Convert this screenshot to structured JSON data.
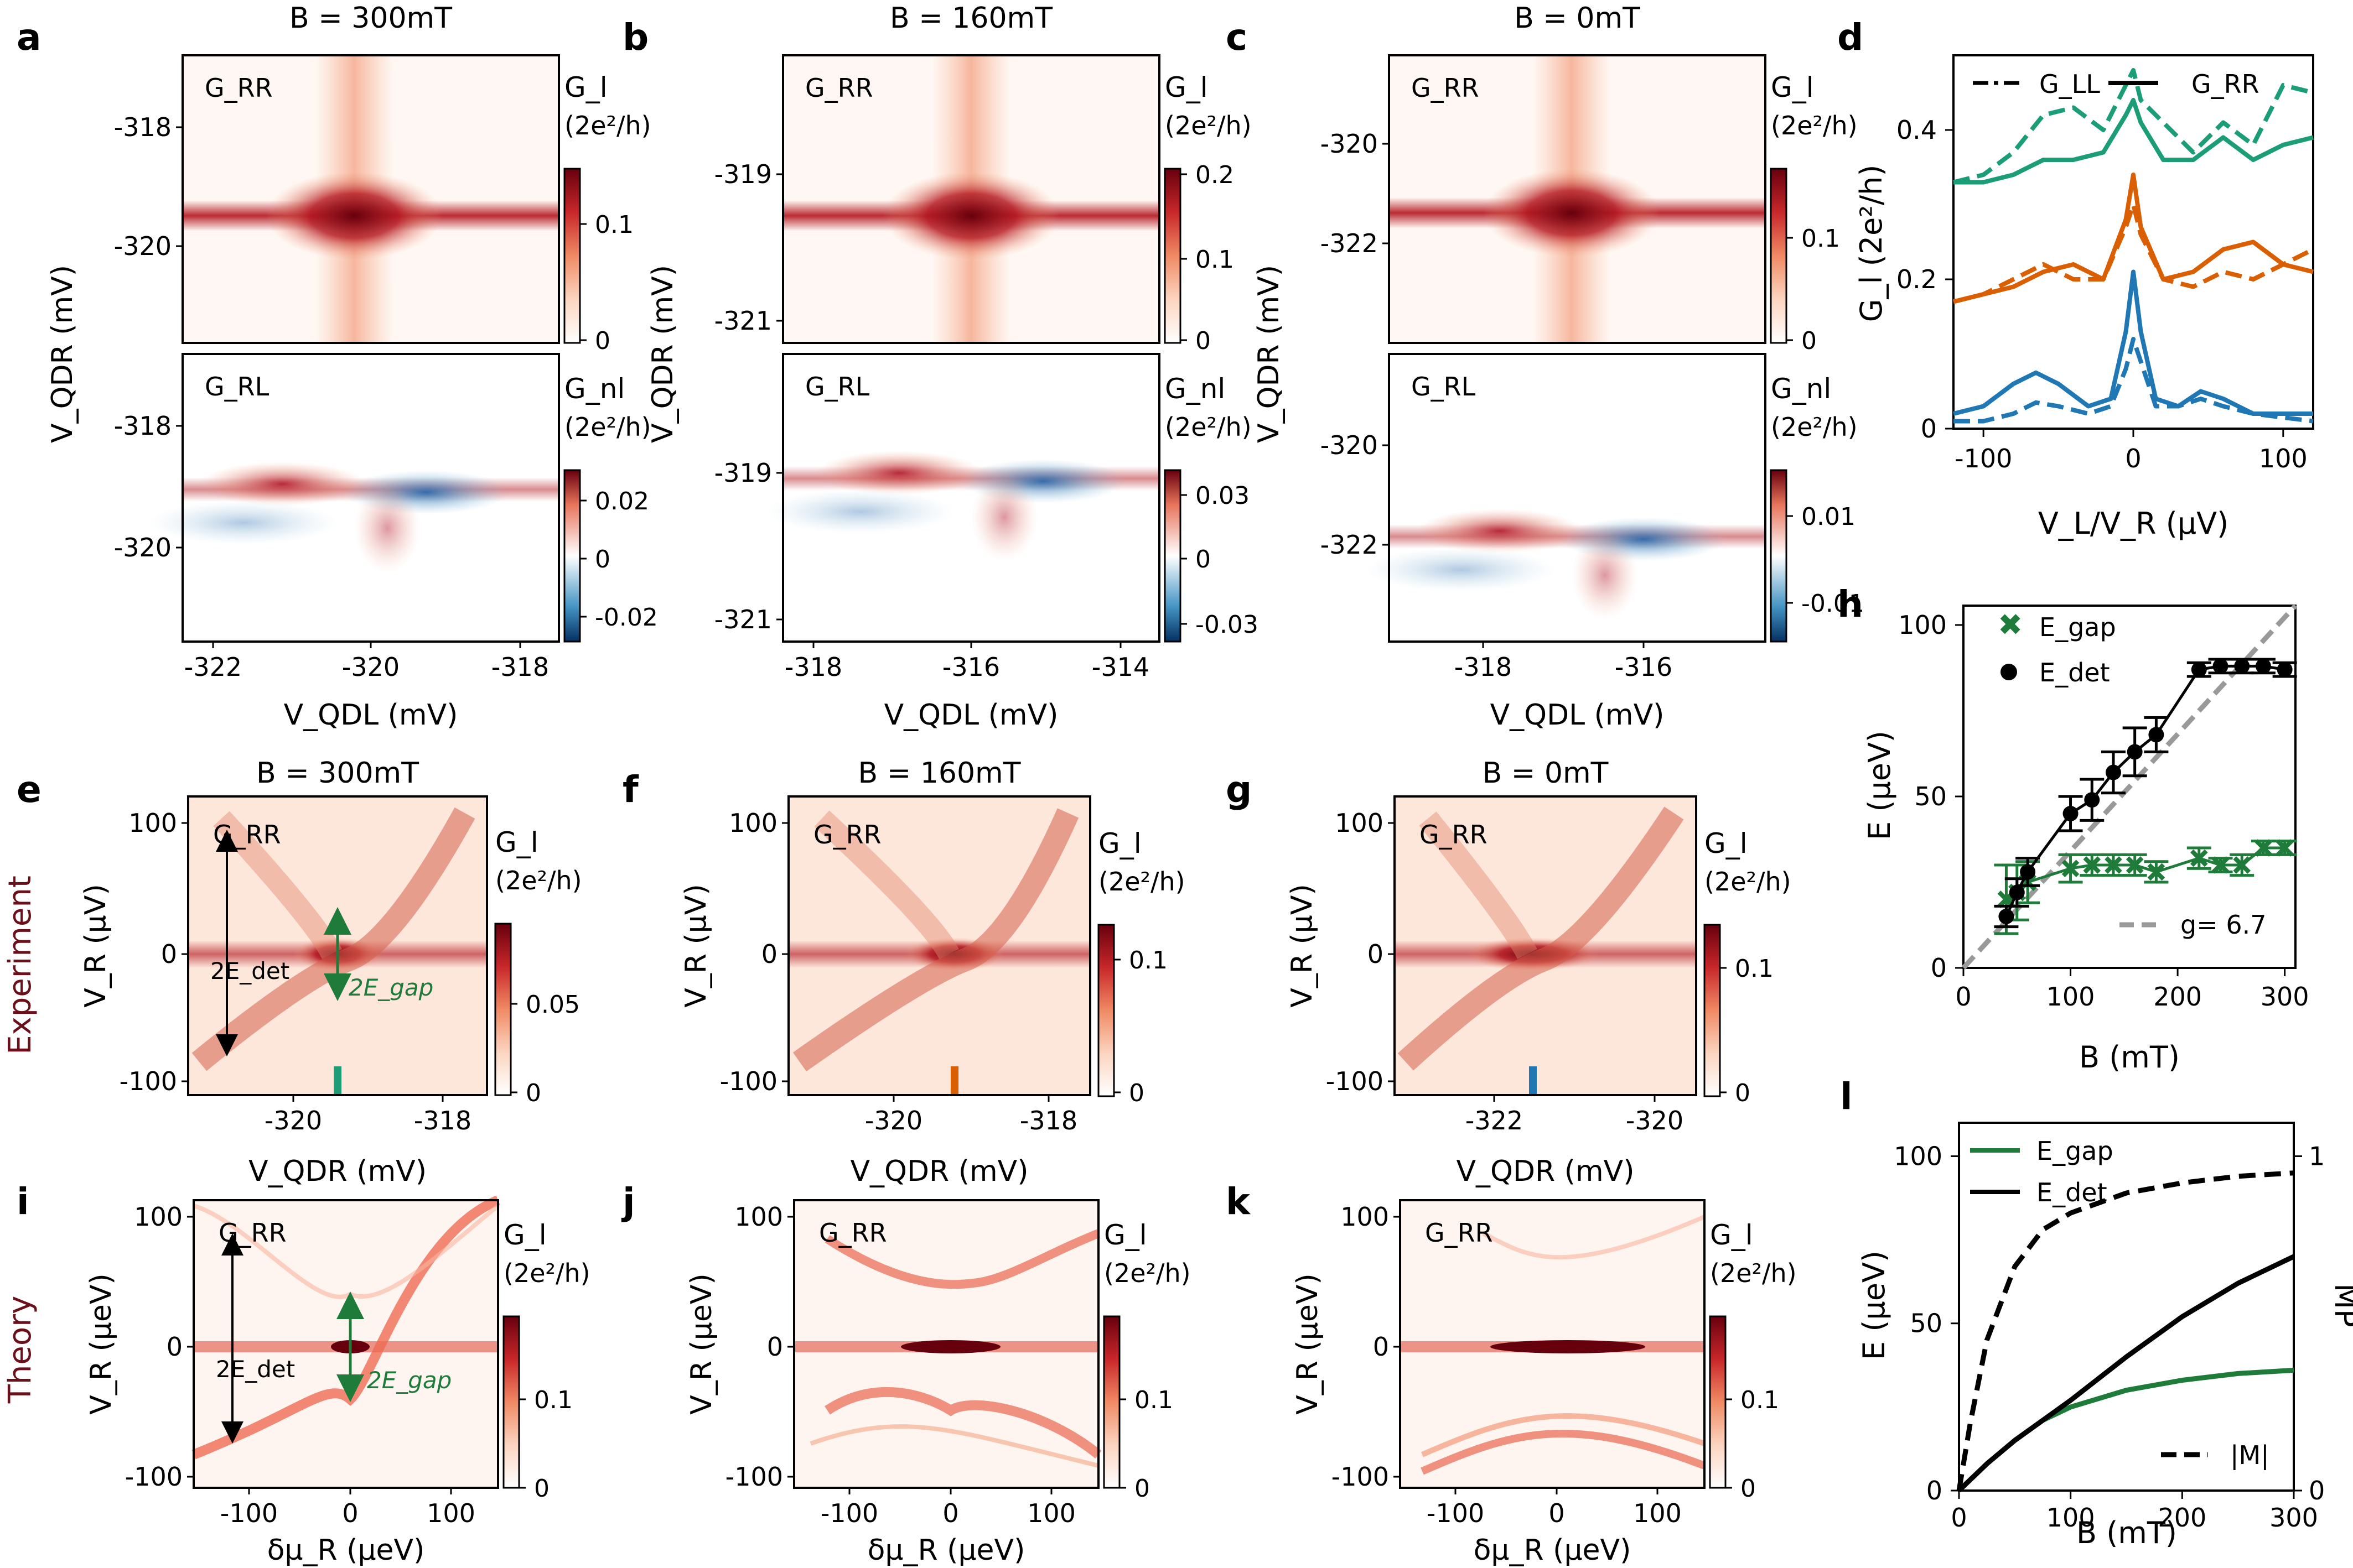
{
  "colors": {
    "cmap_seq": [
      "#ffffff",
      "#fce0d0",
      "#f5a582",
      "#de4e3a",
      "#a50f15",
      "#67000d"
    ],
    "cmap_div_neg": "#2166ac",
    "cmap_div_pos": "#b2182b",
    "qd_green": "#1b9e77",
    "qd_orange": "#d95f02",
    "qd_blue": "#1f77b4",
    "gap_green": "#1e7b3a",
    "row_label": "#6b0f1a",
    "dash_grey": "#999999"
  },
  "row_labels": {
    "experiment": "Experiment",
    "theory": "Theory"
  },
  "top_maps": [
    {
      "letter": "a",
      "title": "B = 300mT",
      "top_label": "G_RR",
      "bottom_label": "G_RL",
      "xlabel": "V_QDL (mV)",
      "ylabel": "V_QDR (mV)",
      "x_ticks": [
        "-322",
        "-320",
        "-318"
      ],
      "y_ticks_top": [
        "-318",
        "-320"
      ],
      "y_ticks_bottom": [
        "-318",
        "-320"
      ],
      "cbar_top": {
        "label1": "G_l",
        "label2": "(2e²/h)",
        "ticks": [
          "0.1",
          "0"
        ]
      },
      "cbar_bottom": {
        "label1": "G_nl",
        "label2": "(2e²/h)",
        "ticks": [
          "0.02",
          "0",
          "-0.02"
        ]
      }
    },
    {
      "letter": "b",
      "title": "B = 160mT",
      "top_label": "G_RR",
      "bottom_label": "G_RL",
      "xlabel": "V_QDL (mV)",
      "ylabel": "V_QDR (mV)",
      "x_ticks": [
        "-318",
        "-316",
        "-314"
      ],
      "y_ticks_top": [
        "-319",
        "-321"
      ],
      "y_ticks_bottom": [
        "-319",
        "-321"
      ],
      "cbar_top": {
        "label1": "G_l",
        "label2": "(2e²/h)",
        "ticks": [
          "0.2",
          "0.1",
          "0"
        ]
      },
      "cbar_bottom": {
        "label1": "G_nl",
        "label2": "(2e²/h)",
        "ticks": [
          "0.03",
          "0",
          "-0.03"
        ]
      }
    },
    {
      "letter": "c",
      "title": "B = 0mT",
      "top_label": "G_RR",
      "bottom_label": "G_RL",
      "xlabel": "V_QDL (mV)",
      "ylabel": "V_QDR (mV)",
      "x_ticks": [
        "-318",
        "-316"
      ],
      "y_ticks_top": [
        "-320",
        "-322"
      ],
      "y_ticks_bottom": [
        "-320",
        "-322"
      ],
      "cbar_top": {
        "label1": "G_l",
        "label2": "(2e²/h)",
        "ticks": [
          "0.1",
          "0"
        ]
      },
      "cbar_bottom": {
        "label1": "G_nl",
        "label2": "(2e²/h)",
        "ticks": [
          "0.01",
          "-0.01"
        ]
      }
    }
  ],
  "exp_maps": [
    {
      "letter": "e",
      "title": "B = 300mT",
      "label": "G_RR",
      "xlabel": "V_QDR (mV)",
      "ylabel": "V_R (µV)",
      "x_ticks": [
        "-320",
        "-318"
      ],
      "y_ticks": [
        "100",
        "0",
        "-100"
      ],
      "cbar": {
        "label1": "G_l",
        "label2": "(2e²/h)",
        "ticks": [
          "0.05",
          "0"
        ]
      },
      "marker_color": "#1b9e77",
      "annot_det": "2E_det",
      "annot_gap": "2E_gap"
    },
    {
      "letter": "f",
      "title": "B = 160mT",
      "label": "G_RR",
      "xlabel": "V_QDR (mV)",
      "ylabel": "V_R (µV)",
      "x_ticks": [
        "-320",
        "-318"
      ],
      "y_ticks": [
        "100",
        "0",
        "-100"
      ],
      "cbar": {
        "label1": "G_l",
        "label2": "(2e²/h)",
        "ticks": [
          "0.1",
          "0"
        ]
      },
      "marker_color": "#d95f02"
    },
    {
      "letter": "g",
      "title": "B = 0mT",
      "label": "G_RR",
      "xlabel": "V_QDR (mV)",
      "ylabel": "V_R (µV)",
      "x_ticks": [
        "-322",
        "-320"
      ],
      "y_ticks": [
        "100",
        "0",
        "-100"
      ],
      "cbar": {
        "label1": "G_l",
        "label2": "(2e²/h)",
        "ticks": [
          "0.1",
          "0"
        ]
      },
      "marker_color": "#1f77b4"
    }
  ],
  "theory_maps": [
    {
      "letter": "i",
      "label": "G_RR",
      "xlabel": "δμ_R (µeV)",
      "ylabel": "V_R (µeV)",
      "x_ticks": [
        "-100",
        "0",
        "100"
      ],
      "y_ticks": [
        "100",
        "0",
        "-100"
      ],
      "cbar": {
        "label1": "G_l",
        "label2": "(2e²/h)",
        "ticks": [
          "0.1",
          "0"
        ]
      },
      "annot_det": "2E_det",
      "annot_gap": "2E_gap"
    },
    {
      "letter": "j",
      "label": "G_RR",
      "xlabel": "δμ_R (µeV)",
      "ylabel": "V_R (µeV)",
      "x_ticks": [
        "-100",
        "0",
        "100"
      ],
      "y_ticks": [
        "100",
        "0",
        "-100"
      ],
      "cbar": {
        "label1": "G_l",
        "label2": "(2e²/h)",
        "ticks": [
          "0.1",
          "0"
        ]
      }
    },
    {
      "letter": "k",
      "label": "G_RR",
      "xlabel": "δμ_R (µeV)",
      "ylabel": "V_R (µeV)",
      "x_ticks": [
        "-100",
        "0",
        "100"
      ],
      "y_ticks": [
        "100",
        "0",
        "-100"
      ],
      "cbar": {
        "label1": "G_l",
        "label2": "(2e²/h)",
        "ticks": [
          "0.1",
          "0"
        ]
      }
    }
  ],
  "chart_data": [
    {
      "panel": "d",
      "type": "line",
      "xlabel": "V_L/V_R (µV)",
      "ylabel": "G_l (2e²/h)",
      "xlim": [
        -120,
        120
      ],
      "ylim": [
        0,
        0.5
      ],
      "x_ticks": [
        "-100",
        "0",
        "100"
      ],
      "y_ticks": [
        "0",
        "0.2",
        "0.4"
      ],
      "legend": [
        "G_LL",
        "G_RR"
      ],
      "legend_position": "top",
      "series": [
        {
          "name": "G_RR 0mT",
          "color": "#1f77b4",
          "style": "solid",
          "x": [
            -120,
            -100,
            -80,
            -65,
            -50,
            -30,
            -15,
            -5,
            0,
            5,
            15,
            30,
            45,
            60,
            80,
            100,
            120
          ],
          "y": [
            0.02,
            0.03,
            0.06,
            0.075,
            0.06,
            0.03,
            0.04,
            0.13,
            0.21,
            0.13,
            0.04,
            0.03,
            0.05,
            0.04,
            0.02,
            0.02,
            0.02
          ]
        },
        {
          "name": "G_LL 0mT",
          "color": "#1f77b4",
          "style": "dashed",
          "x": [
            -120,
            -100,
            -80,
            -65,
            -50,
            -30,
            -15,
            -5,
            0,
            5,
            15,
            30,
            45,
            60,
            80,
            100,
            120
          ],
          "y": [
            0.01,
            0.01,
            0.02,
            0.035,
            0.03,
            0.02,
            0.03,
            0.08,
            0.12,
            0.09,
            0.03,
            0.03,
            0.04,
            0.03,
            0.02,
            0.015,
            0.01
          ]
        },
        {
          "name": "G_RR 160mT",
          "color": "#d95f02",
          "style": "solid",
          "x": [
            -120,
            -100,
            -80,
            -60,
            -40,
            -20,
            -5,
            0,
            5,
            20,
            40,
            60,
            80,
            100,
            120
          ],
          "y": [
            0.17,
            0.18,
            0.19,
            0.21,
            0.22,
            0.2,
            0.28,
            0.34,
            0.27,
            0.2,
            0.21,
            0.24,
            0.25,
            0.22,
            0.21
          ]
        },
        {
          "name": "G_LL 160mT",
          "color": "#d95f02",
          "style": "dashed",
          "x": [
            -120,
            -100,
            -80,
            -60,
            -40,
            -20,
            -5,
            0,
            5,
            20,
            40,
            60,
            80,
            100,
            120
          ],
          "y": [
            0.17,
            0.18,
            0.2,
            0.22,
            0.2,
            0.2,
            0.27,
            0.3,
            0.26,
            0.2,
            0.19,
            0.21,
            0.2,
            0.22,
            0.24
          ]
        },
        {
          "name": "G_RR 300mT",
          "color": "#1b9e77",
          "style": "solid",
          "x": [
            -120,
            -100,
            -80,
            -60,
            -40,
            -20,
            -5,
            0,
            5,
            20,
            40,
            60,
            80,
            100,
            120
          ],
          "y": [
            0.33,
            0.33,
            0.34,
            0.36,
            0.36,
            0.37,
            0.42,
            0.44,
            0.41,
            0.36,
            0.36,
            0.39,
            0.36,
            0.38,
            0.39
          ]
        },
        {
          "name": "G_LL 300mT",
          "color": "#1b9e77",
          "style": "dashed",
          "x": [
            -120,
            -100,
            -80,
            -60,
            -40,
            -20,
            -5,
            0,
            5,
            20,
            40,
            60,
            80,
            100,
            120
          ],
          "y": [
            0.33,
            0.34,
            0.37,
            0.42,
            0.43,
            0.4,
            0.46,
            0.48,
            0.44,
            0.41,
            0.37,
            0.41,
            0.38,
            0.46,
            0.45
          ]
        }
      ]
    },
    {
      "panel": "h",
      "type": "scatter",
      "xlabel": "B (mT)",
      "ylabel": "E (μeV)",
      "xlim": [
        0,
        310
      ],
      "ylim": [
        0,
        100
      ],
      "x_ticks": [
        "0",
        "100",
        "200",
        "300"
      ],
      "y_ticks": [
        "0",
        "50",
        "100"
      ],
      "legend_position": "top-left",
      "series": [
        {
          "name": "E_gap",
          "marker": "x",
          "color": "#1e7b3a",
          "x": [
            40,
            50,
            60,
            100,
            120,
            140,
            160,
            180,
            220,
            240,
            260,
            280,
            300
          ],
          "y": [
            20,
            22,
            25,
            29,
            30,
            30,
            30,
            28,
            32,
            30,
            30,
            35,
            35
          ],
          "err": [
            10,
            8,
            6,
            4,
            3,
            3,
            3,
            3,
            3,
            2,
            3,
            2,
            2
          ]
        },
        {
          "name": "E_det",
          "marker": "o",
          "color": "#000000",
          "x": [
            40,
            50,
            60,
            100,
            120,
            140,
            160,
            180,
            220,
            240,
            260,
            280,
            300
          ],
          "y": [
            15,
            22,
            28,
            45,
            49,
            57,
            63,
            68,
            87,
            88,
            88,
            88,
            87
          ],
          "err": [
            3,
            4,
            4,
            5,
            6,
            6,
            7,
            5,
            2,
            2,
            2,
            2,
            2
          ]
        },
        {
          "name": "g= 6.7",
          "style": "dashed",
          "color": "#999999",
          "x": [
            0,
            310
          ],
          "y": [
            0,
            108
          ]
        }
      ]
    },
    {
      "panel": "l",
      "type": "line",
      "xlabel": "B (mT)",
      "ylabel": "E (μeV)",
      "y2label": "MP",
      "xlim": [
        0,
        300
      ],
      "ylim": [
        0,
        110
      ],
      "y2lim": [
        0,
        1.1
      ],
      "x_ticks": [
        "0",
        "100",
        "200",
        "300"
      ],
      "y_ticks": [
        "0",
        "50",
        "100"
      ],
      "y2_ticks": [
        "0",
        "1"
      ],
      "series": [
        {
          "name": "E_gap",
          "color": "#1e7b3a",
          "style": "solid",
          "x": [
            0,
            25,
            50,
            75,
            100,
            150,
            200,
            250,
            300
          ],
          "y": [
            0,
            8,
            15,
            21,
            25,
            30,
            33,
            35,
            36
          ]
        },
        {
          "name": "E_det",
          "color": "#000000",
          "style": "solid",
          "x": [
            0,
            25,
            50,
            75,
            100,
            150,
            200,
            250,
            300
          ],
          "y": [
            0,
            8,
            15,
            21,
            27,
            40,
            52,
            62,
            70
          ]
        },
        {
          "name": "|M|",
          "axis": "y2",
          "color": "#000000",
          "style": "dashed",
          "x": [
            0,
            10,
            25,
            50,
            75,
            100,
            150,
            200,
            250,
            300
          ],
          "y": [
            0,
            0.2,
            0.45,
            0.67,
            0.78,
            0.83,
            0.89,
            0.92,
            0.94,
            0.95
          ]
        }
      ]
    }
  ]
}
